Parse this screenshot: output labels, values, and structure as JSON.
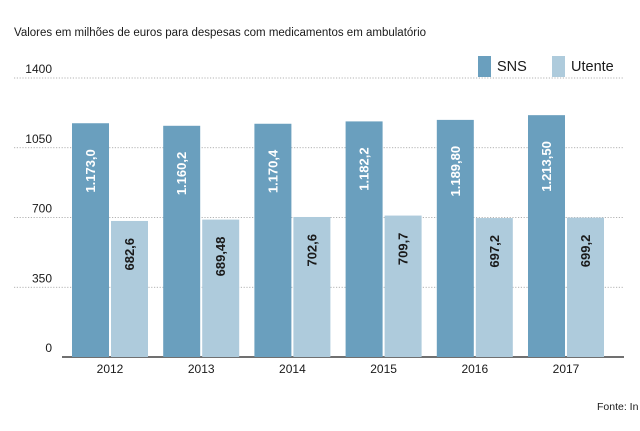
{
  "chart_data": {
    "type": "bar",
    "title": "Valores em milhões de euros para despesas com medicamentos em ambulatório",
    "source": "Fonte: In",
    "categories": [
      "2012",
      "2013",
      "2014",
      "2015",
      "2016",
      "2017"
    ],
    "series": [
      {
        "name": "SNS",
        "color": "#6a9fbe",
        "values": [
          1173.0,
          1160.2,
          1170.4,
          1182.2,
          1189.8,
          1213.5
        ],
        "labels": [
          "1.173,0",
          "1.160,2",
          "1.170,4",
          "1.182,2",
          "1.189,80",
          "1.213,50"
        ]
      },
      {
        "name": "Utente",
        "color": "#aecbdc",
        "values": [
          682.6,
          689.48,
          702.6,
          709.7,
          697.2,
          699.2
        ],
        "labels": [
          "682,6",
          "689,48",
          "702,6",
          "709,7",
          "697,2",
          "699,2"
        ]
      }
    ],
    "yticks": [
      0,
      350,
      700,
      1050,
      1400
    ],
    "ytick_labels": [
      "0",
      "350",
      "700",
      "1050",
      "1400"
    ],
    "ylim": [
      0,
      1400
    ],
    "grid": true,
    "legend_position": "top-right",
    "colors": {
      "grid": "#9a9a9a",
      "axis": "#1a1a1a",
      "text": "#1a1a1a",
      "sns_label": "#ffffff",
      "utente_label": "#1a1a1a"
    }
  }
}
